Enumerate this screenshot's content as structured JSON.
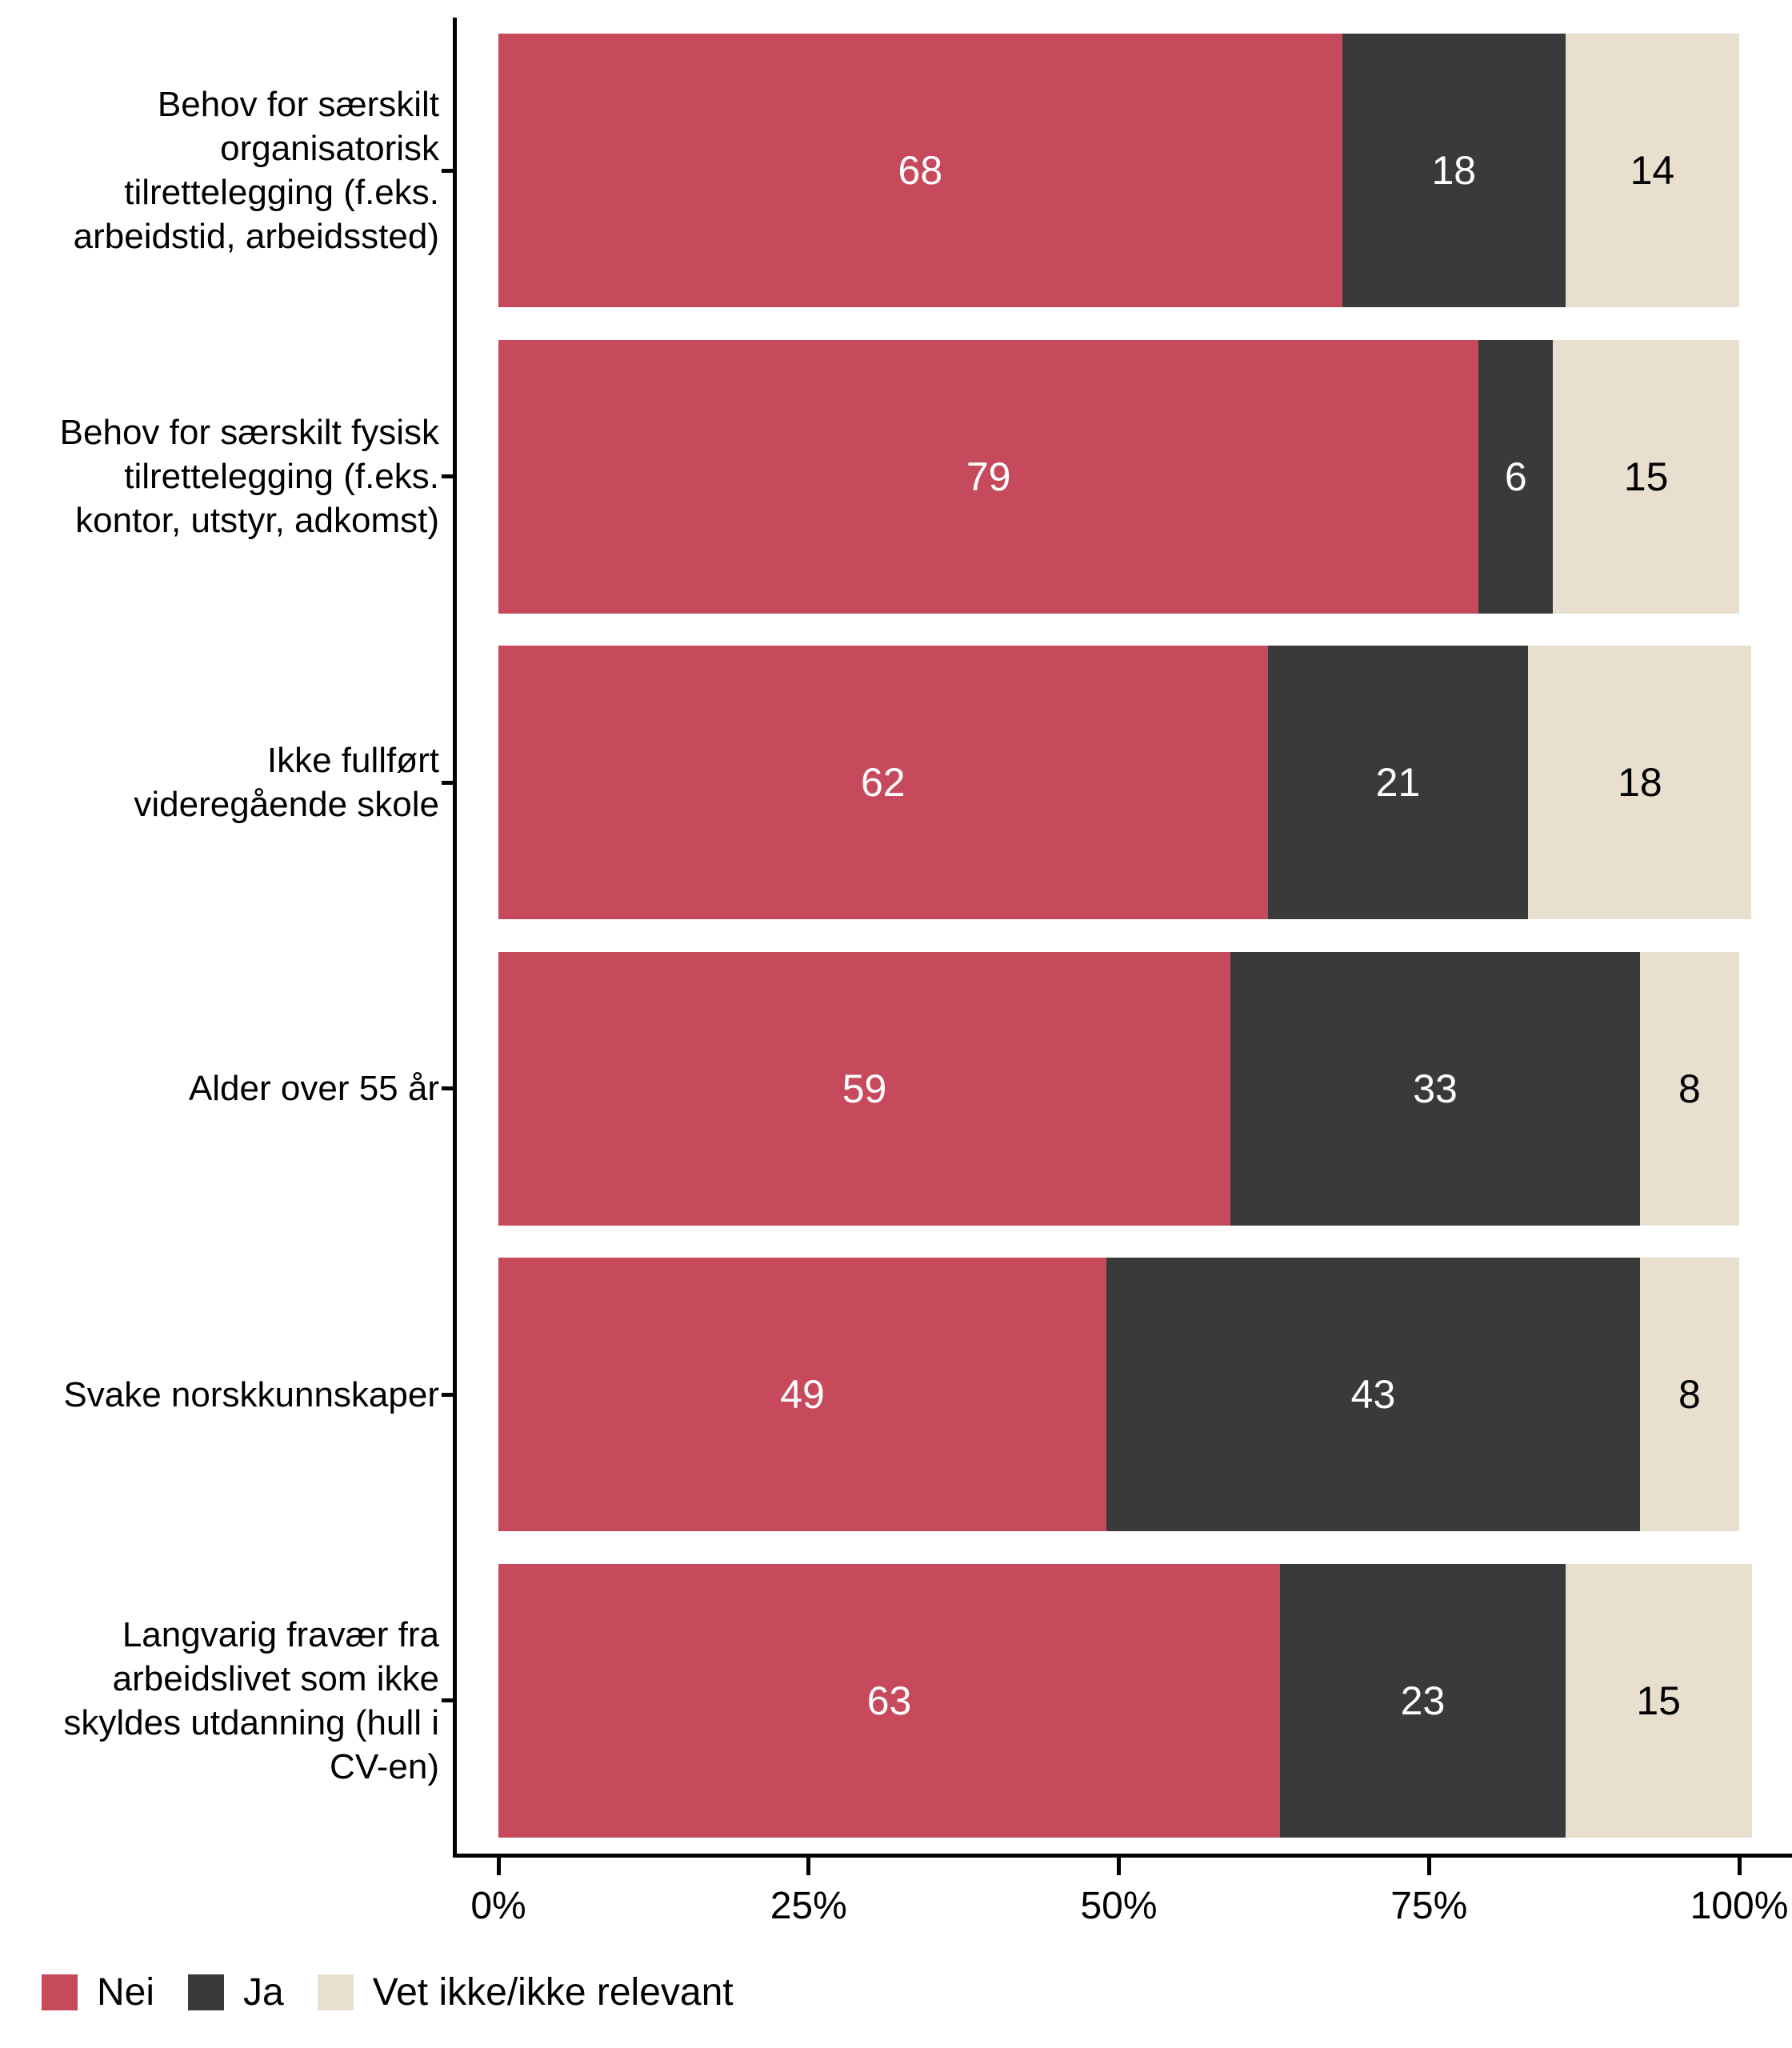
{
  "chart_data": {
    "type": "bar",
    "orientation": "horizontal",
    "stacked": true,
    "title": "",
    "xlabel": "",
    "ylabel": "",
    "grid": false,
    "legend_position": "bottom-left",
    "background": "#ffffff",
    "axis_color": "#000000",
    "xlim": [
      0,
      100
    ],
    "x_ticks": [
      {
        "value": 0,
        "label": "0%"
      },
      {
        "value": 25,
        "label": "25%"
      },
      {
        "value": 50,
        "label": "50%"
      },
      {
        "value": 75,
        "label": "75%"
      },
      {
        "value": 100,
        "label": "100%"
      }
    ],
    "categories": [
      "Behov for særskilt\norganisatorisk\ntilrettelegging (f.eks.\narbeidstid, arbeidssted)",
      "Behov for særskilt fysisk\ntilrettelegging (f.eks.\nkontor, utstyr, adkomst)",
      "Ikke fullført\nvideregående skole",
      "Alder over 55 år",
      "Svake norskkunnskaper",
      "Langvarig fravær fra\narbeidslivet som ikke\nskyldes utdanning (hull i\nCV-en)"
    ],
    "series": [
      {
        "name": "Nei",
        "color": "#c6495c",
        "label_color": "#ffffff",
        "values": [
          68,
          79,
          62,
          59,
          49,
          63
        ]
      },
      {
        "name": "Ja",
        "color": "#3a3a3a",
        "label_color": "#ffffff",
        "values": [
          18,
          6,
          21,
          33,
          43,
          23
        ]
      },
      {
        "name": "Vet ikke/ikke relevant",
        "color": "#e8dfcf",
        "label_color": "#000000",
        "values": [
          14,
          15,
          18,
          8,
          8,
          15
        ]
      }
    ]
  }
}
